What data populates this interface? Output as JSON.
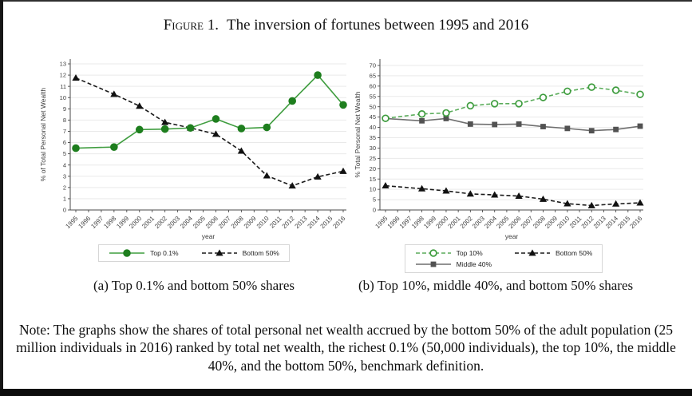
{
  "title": {
    "prefix": "Figure 1.",
    "text": "The inversion of fortunes between 1995 and 2016"
  },
  "captions": {
    "a": "(a) Top 0.1% and bottom 50% shares",
    "b": "(b) Top 10%, middle 40%, and bottom 50% shares"
  },
  "note": "Note: The graphs show the shares of total personal net wealth accrued by the bottom 50% of the adult population (25 million individuals in 2016) ranked by total net wealth, the richest 0.1% (50,000 individuals), the top 10%, the middle 40%, and the bottom 50%, benchmark definition.",
  "chart_data": [
    {
      "id": "chart-a",
      "type": "line",
      "title": "",
      "xlabel": "year",
      "ylabel": "% of Total Personal Net Wealth",
      "ylim": [
        0,
        13
      ],
      "ytick_step": 1,
      "grid": true,
      "legend_position": "bottom",
      "legend_rows": 1,
      "xticks": [
        1995,
        1996,
        1997,
        1998,
        1999,
        2000,
        2001,
        2002,
        2003,
        2004,
        2005,
        2006,
        2007,
        2008,
        2009,
        2010,
        2011,
        2012,
        2013,
        2014,
        2015,
        2016
      ],
      "x": [
        1995,
        1998,
        2000,
        2002,
        2004,
        2006,
        2008,
        2010,
        2012,
        2014,
        2016
      ],
      "series": [
        {
          "name": "Top 0.1%",
          "values": [
            5.5,
            5.6,
            7.15,
            7.2,
            7.3,
            8.1,
            7.25,
            7.35,
            9.7,
            12.0,
            9.35
          ],
          "color": "#3f9d3f",
          "marker": "circle",
          "marker_color": "#1e7e1e",
          "line": "solid"
        },
        {
          "name": "Bottom 50%",
          "values": [
            11.75,
            10.3,
            9.25,
            7.8,
            7.3,
            6.75,
            5.25,
            3.05,
            2.15,
            2.95,
            3.45
          ],
          "color": "#1a1a1a",
          "marker": "triangle",
          "marker_color": "#111111",
          "line": "dashed"
        }
      ]
    },
    {
      "id": "chart-b",
      "type": "line",
      "title": "",
      "xlabel": "year",
      "ylabel": "% Total Personal Net Wealth",
      "ylim": [
        0,
        70
      ],
      "ytick_step": 5,
      "grid": true,
      "legend_position": "bottom",
      "legend_rows": 2,
      "xticks": [
        1995,
        1996,
        1997,
        1998,
        1999,
        2000,
        2001,
        2002,
        2003,
        2004,
        2005,
        2006,
        2007,
        2008,
        2009,
        2010,
        2011,
        2012,
        2013,
        2014,
        2015,
        2016
      ],
      "x": [
        1995,
        1998,
        2000,
        2002,
        2004,
        2006,
        2008,
        2010,
        2012,
        2014,
        2016
      ],
      "series": [
        {
          "name": "Top 10%",
          "values": [
            44.4,
            46.5,
            47.0,
            50.5,
            51.5,
            51.5,
            54.5,
            57.5,
            59.5,
            58.0,
            56.0
          ],
          "color": "#5aac5a",
          "marker": "circle-open",
          "marker_color": "#3f9d3f",
          "line": "dashed"
        },
        {
          "name": "Middle 40%",
          "values": [
            44.3,
            43.2,
            44.3,
            41.6,
            41.4,
            41.6,
            40.4,
            39.5,
            38.4,
            39.0,
            40.6
          ],
          "color": "#6f6f6f",
          "marker": "square",
          "marker_color": "#525252",
          "line": "solid"
        },
        {
          "name": "Bottom 50%",
          "values": [
            11.75,
            10.3,
            9.25,
            7.8,
            7.3,
            6.75,
            5.25,
            3.05,
            2.15,
            2.95,
            3.45
          ],
          "color": "#1a1a1a",
          "marker": "triangle",
          "marker_color": "#111111",
          "line": "dashed"
        }
      ]
    }
  ]
}
